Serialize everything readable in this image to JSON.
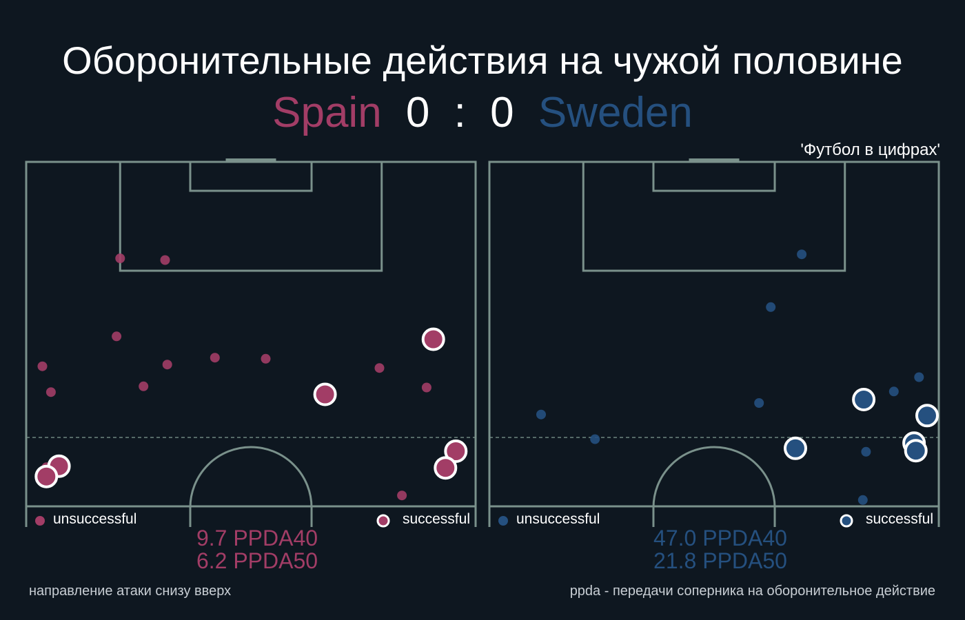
{
  "title": "Оборонительные действия на чужой половине",
  "score": {
    "home_team": "Spain",
    "away_team": "Sweden",
    "home_goals": "0",
    "separator": ":",
    "away_goals": "0"
  },
  "source": "'Футбол в цифрах'",
  "footer": {
    "left": "направление атаки снизу вверх",
    "right": "ppda - передачи соперника на оборонительное действие"
  },
  "colors": {
    "background": "#0e1720",
    "pitch_lines": "#7a918b",
    "home": "#a23d66",
    "away": "#25507f",
    "text": "#ffffff"
  },
  "chart_data": [
    {
      "type": "scatter",
      "team": "Spain",
      "color": "#a23d66",
      "legend": {
        "unsuccessful": "unsuccessful",
        "successful": "successful"
      },
      "ppda": {
        "ppda40": "9.7 PPDA40",
        "ppda50": "6.2 PPDA50"
      },
      "x_range": [
        0,
        100
      ],
      "y_range": [
        40,
        100
      ],
      "unsuccessful": [
        [
          20.9,
          83.2
        ],
        [
          30.9,
          82.9
        ],
        [
          20.1,
          69.6
        ],
        [
          3.6,
          64.4
        ],
        [
          31.4,
          64.7
        ],
        [
          42.0,
          65.9
        ],
        [
          53.3,
          65.7
        ],
        [
          5.5,
          59.9
        ],
        [
          26.1,
          60.9
        ],
        [
          66.1,
          59.3
        ],
        [
          78.6,
          64.1
        ],
        [
          89.1,
          60.7
        ],
        [
          83.6,
          41.9
        ],
        [
          4.5,
          46.8
        ]
      ],
      "successful": [
        [
          90.6,
          69.1
        ],
        [
          66.5,
          59.5
        ],
        [
          95.6,
          49.6
        ],
        [
          7.3,
          47.0
        ],
        [
          4.5,
          45.2
        ],
        [
          93.3,
          46.7
        ]
      ]
    },
    {
      "type": "scatter",
      "team": "Sweden",
      "color": "#25507f",
      "legend": {
        "unsuccessful": "unsuccessful",
        "successful": "successful"
      },
      "ppda": {
        "ppda40": "47.0 PPDA40",
        "ppda50": "21.8 PPDA50"
      },
      "x_range": [
        0,
        100
      ],
      "y_range": [
        40,
        100
      ],
      "unsuccessful": [
        [
          69.5,
          83.9
        ],
        [
          62.6,
          74.7
        ],
        [
          95.6,
          62.5
        ],
        [
          90.0,
          60.0
        ],
        [
          60.0,
          58.0
        ],
        [
          11.5,
          56.0
        ],
        [
          23.5,
          51.7
        ],
        [
          83.8,
          49.5
        ],
        [
          83.1,
          41.1
        ]
      ],
      "successful": [
        [
          83.3,
          58.6
        ],
        [
          97.4,
          55.8
        ],
        [
          68.1,
          50.1
        ],
        [
          94.5,
          51.0
        ],
        [
          94.9,
          49.7
        ]
      ]
    }
  ]
}
